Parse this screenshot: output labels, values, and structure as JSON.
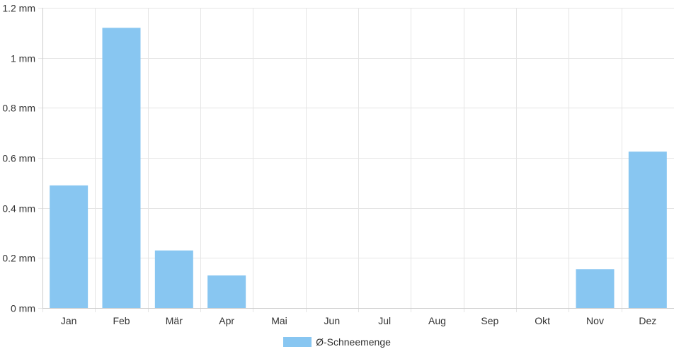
{
  "chart_data": {
    "type": "bar",
    "categories": [
      "Jan",
      "Feb",
      "Mär",
      "Apr",
      "Mai",
      "Jun",
      "Jul",
      "Aug",
      "Sep",
      "Okt",
      "Nov",
      "Dez"
    ],
    "series": [
      {
        "name": "Ø-Schneemenge",
        "values": [
          0.49,
          1.12,
          0.23,
          0.13,
          0,
          0,
          0,
          0,
          0,
          0,
          0.155,
          0.625
        ]
      }
    ],
    "ylim": [
      0,
      1.2
    ],
    "yticks": [
      0,
      0.2,
      0.4,
      0.6,
      0.8,
      1,
      1.2
    ],
    "ytick_labels": [
      "0 mm",
      "0.2 mm",
      "0.4 mm",
      "0.6 mm",
      "0.8 mm",
      "1 mm",
      "1.2 mm"
    ],
    "grid": true,
    "legend_position": "bottom-center",
    "colors": {
      "bar": "#88c6f1",
      "grid": "#e5e5e5",
      "axis": "#cccccc"
    }
  }
}
